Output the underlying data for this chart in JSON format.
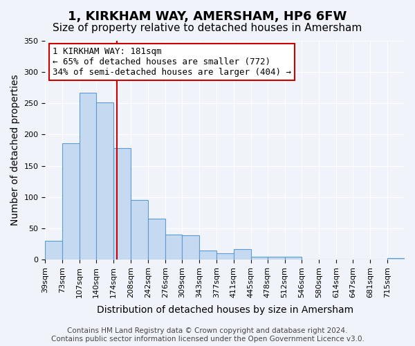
{
  "title": "1, KIRKHAM WAY, AMERSHAM, HP6 6FW",
  "subtitle": "Size of property relative to detached houses in Amersham",
  "xlabel": "Distribution of detached houses by size in Amersham",
  "ylabel": "Number of detached properties",
  "bin_labels": [
    "39sqm",
    "73sqm",
    "107sqm",
    "140sqm",
    "174sqm",
    "208sqm",
    "242sqm",
    "276sqm",
    "309sqm",
    "343sqm",
    "377sqm",
    "411sqm",
    "445sqm",
    "478sqm",
    "512sqm",
    "546sqm",
    "580sqm",
    "614sqm",
    "647sqm",
    "681sqm",
    "715sqm"
  ],
  "bar_heights": [
    30,
    186,
    267,
    251,
    178,
    95,
    65,
    40,
    39,
    14,
    10,
    17,
    5,
    5,
    5,
    0,
    0,
    0,
    0,
    0,
    2
  ],
  "bar_color": "#c5d9f0",
  "bar_edge_color": "#5b9bd5",
  "property_line_x": 181,
  "bin_edges": [
    39,
    73,
    107,
    140,
    174,
    208,
    242,
    276,
    309,
    343,
    377,
    411,
    445,
    478,
    512,
    546,
    580,
    614,
    647,
    681,
    715,
    749
  ],
  "annotation_title": "1 KIRKHAM WAY: 181sqm",
  "annotation_line1": "← 65% of detached houses are smaller (772)",
  "annotation_line2": "34% of semi-detached houses are larger (404) →",
  "annotation_box_color": "#ffffff",
  "annotation_box_edge_color": "#cc0000",
  "vline_color": "#cc0000",
  "ylim": [
    0,
    350
  ],
  "yticks": [
    0,
    50,
    100,
    150,
    200,
    250,
    300,
    350
  ],
  "footer_line1": "Contains HM Land Registry data © Crown copyright and database right 2024.",
  "footer_line2": "Contains public sector information licensed under the Open Government Licence v3.0.",
  "background_color": "#f0f4fa",
  "plot_bg_color": "#f0f4fa",
  "title_fontsize": 13,
  "subtitle_fontsize": 11,
  "axis_label_fontsize": 10,
  "tick_fontsize": 8,
  "annotation_fontsize": 9,
  "footer_fontsize": 7.5
}
